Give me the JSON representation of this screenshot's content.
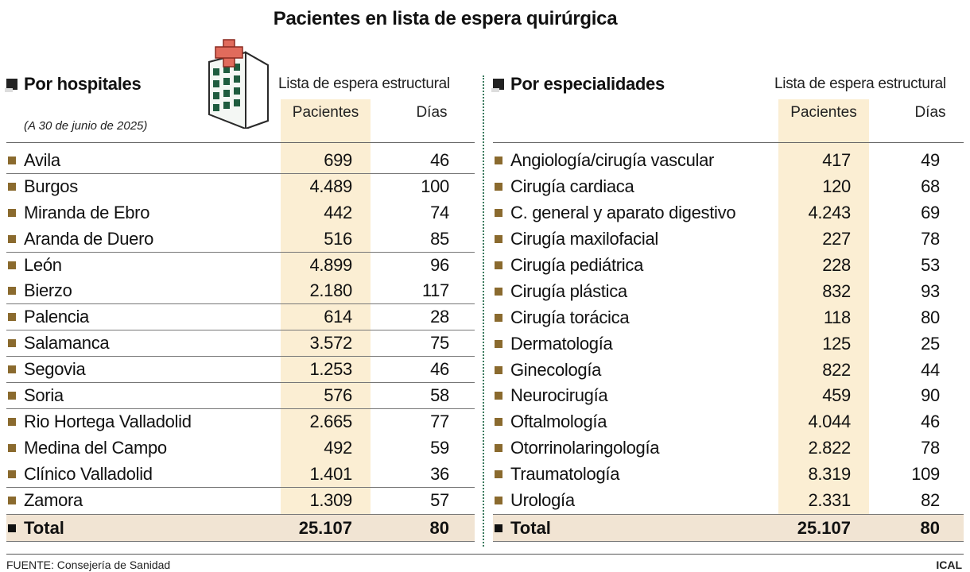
{
  "title": "Pacientes en lista de espera quirúrgica",
  "left": {
    "section_title": "Por hospitales",
    "subtitle": "(A 30 de junio de 2025)",
    "group_label": "Lista de espera estructural",
    "col_patients": "Pacientes",
    "col_days": "Días",
    "rows": [
      {
        "label": "Avila",
        "patients": "699",
        "days": "46"
      },
      {
        "label": "Burgos",
        "patients": "4.489",
        "days": "100"
      },
      {
        "label": "Miranda de Ebro",
        "patients": "442",
        "days": "74"
      },
      {
        "label": "Aranda de Duero",
        "patients": "516",
        "days": "85"
      },
      {
        "label": "León",
        "patients": "4.899",
        "days": "96"
      },
      {
        "label": "Bierzo",
        "patients": "2.180",
        "days": "117"
      },
      {
        "label": "Palencia",
        "patients": "614",
        "days": "28"
      },
      {
        "label": "Salamanca",
        "patients": "3.572",
        "days": "75"
      },
      {
        "label": "Segovia",
        "patients": "1.253",
        "days": "46"
      },
      {
        "label": "Soria",
        "patients": "576",
        "days": "58"
      },
      {
        "label": "Rio Hortega Valladolid",
        "patients": "2.665",
        "days": "77"
      },
      {
        "label": "Medina del Campo",
        "patients": "492",
        "days": "59"
      },
      {
        "label": "Clínico Valladolid",
        "patients": "1.401",
        "days": "36"
      },
      {
        "label": "Zamora",
        "patients": "1.309",
        "days": "57"
      }
    ],
    "total": {
      "label": "Total",
      "patients": "25.107",
      "days": "80"
    }
  },
  "right": {
    "section_title": "Por especialidades",
    "group_label": "Lista de espera estructural",
    "col_patients": "Pacientes",
    "col_days": "Días",
    "rows": [
      {
        "label": "Angiología/cirugía vascular",
        "patients": "417",
        "days": "49"
      },
      {
        "label": "Cirugía cardiaca",
        "patients": "120",
        "days": "68"
      },
      {
        "label": "C. general y aparato digestivo",
        "patients": "4.243",
        "days": "69"
      },
      {
        "label": "Cirugía maxilofacial",
        "patients": "227",
        "days": "78"
      },
      {
        "label": "Cirugía pediátrica",
        "patients": "228",
        "days": "53"
      },
      {
        "label": "Cirugía plástica",
        "patients": "832",
        "days": "93"
      },
      {
        "label": "Cirugía torácica",
        "patients": "118",
        "days": "80"
      },
      {
        "label": "Dermatología",
        "patients": "125",
        "days": "25"
      },
      {
        "label": "Ginecología",
        "patients": "822",
        "days": "44"
      },
      {
        "label": "Neurocirugía",
        "patients": "459",
        "days": "90"
      },
      {
        "label": "Oftalmología",
        "patients": "4.044",
        "days": "46"
      },
      {
        "label": "Otorrinolaringología",
        "patients": "2.822",
        "days": "78"
      },
      {
        "label": "Traumatología",
        "patients": "8.319",
        "days": "109"
      },
      {
        "label": "Urología",
        "patients": "2.331",
        "days": "82"
      }
    ],
    "total": {
      "label": "Total",
      "patients": "25.107",
      "days": "80"
    }
  },
  "source": "FUENTE: Consejería de Sanidad",
  "credit": "ICAL",
  "icons": {
    "hospital": "hospital-building-icon"
  },
  "colors": {
    "highlight": "#fbeed3",
    "total_bg": "#f1e4d3",
    "bullet": "#8a6a2e",
    "divider": "#3a7a5e",
    "cross": "#e06b5c"
  }
}
